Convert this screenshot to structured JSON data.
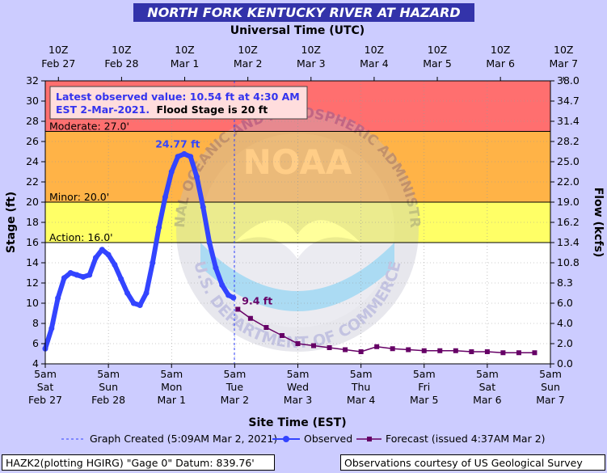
{
  "chart_title": "NORTH FORK KENTUCKY RIVER AT HAZARD",
  "top_axis_title": "Universal Time (UTC)",
  "bottom_axis_title": "Site Time (EST)",
  "left_axis_title": "Stage (ft)",
  "right_axis_title": "Flow (kcfs)",
  "info_box": {
    "latest_text": "Latest observed value: 10.54 ft at 4:30 AM",
    "date_text": "EST 2-Mar-2021.",
    "flood_stage_text": "Flood Stage is 20 ft"
  },
  "thresholds": [
    {
      "label": "Moderate: 27.0'",
      "value": 27.0
    },
    {
      "label": "Minor: 20.0'",
      "value": 20.0
    },
    {
      "label": "Action: 16.0'",
      "value": 16.0
    }
  ],
  "peak_label": "24.77 ft",
  "forecast_start_label": "9.4 ft",
  "legend": {
    "graph_created": "Graph Created (5:09AM Mar 2, 2021)",
    "observed": "Observed",
    "forecast": "Forecast (issued 4:37AM Mar 2)"
  },
  "footer": {
    "left": "HAZK2(plotting HGIRG) \"Gage 0\" Datum: 839.76'",
    "right": "Observations courtesy of US Geological Survey"
  },
  "watermark": {
    "logo_text": "NOAA",
    "ring_top": "NATIONAL OCEANIC AND ATMOSPHERIC ADMINISTRATION",
    "ring_bottom": "U.S. DEPARTMENT OF COMMERCE"
  },
  "colors": {
    "background": "#ccccff",
    "title_bar": "#3333aa",
    "band_major": "#ff6f6f",
    "band_moderate": "#ffb347",
    "band_minor": "#ffff66",
    "band_normal": "#ffffff",
    "observed": "#3344ff",
    "forecast": "#660066",
    "peak_label": "#3344ff",
    "forecast_label": "#660066",
    "info_text": "#3333ee"
  },
  "chart_data": {
    "type": "line",
    "x_unit": "day offset from 5am EST Sat Feb 27, 2021",
    "xlim": [
      0,
      8
    ],
    "ylim": [
      4,
      32
    ],
    "y_right_ticks": [
      "0.0",
      "2.0",
      "4.0",
      "6.0",
      "8.3",
      "10.8",
      "13.4",
      "16.2",
      "19.0",
      "22.0",
      "25.0",
      "28.2",
      "31.4",
      "34.7",
      "38.0"
    ],
    "y_left_ticks": [
      4,
      6,
      8,
      10,
      12,
      14,
      16,
      18,
      20,
      22,
      24,
      26,
      28,
      30,
      32
    ],
    "x_bottom_ticks": [
      {
        "top": "5am",
        "mid": "Sat",
        "bottom": "Feb 27"
      },
      {
        "top": "5am",
        "mid": "Sun",
        "bottom": "Feb 28"
      },
      {
        "top": "5am",
        "mid": "Mon",
        "bottom": "Mar 1"
      },
      {
        "top": "5am",
        "mid": "Tue",
        "bottom": "Mar 2"
      },
      {
        "top": "5am",
        "mid": "Wed",
        "bottom": "Mar 3"
      },
      {
        "top": "5am",
        "mid": "Thu",
        "bottom": "Mar 4"
      },
      {
        "top": "5am",
        "mid": "Fri",
        "bottom": "Mar 5"
      },
      {
        "top": "5am",
        "mid": "Sat",
        "bottom": "Mar 6"
      },
      {
        "top": "5am",
        "mid": "Sun",
        "bottom": "Mar 7"
      }
    ],
    "x_top_ticks": [
      {
        "top": "10Z",
        "bottom": "Feb 27"
      },
      {
        "top": "10Z",
        "bottom": "Feb 28"
      },
      {
        "top": "10Z",
        "bottom": "Mar 1"
      },
      {
        "top": "10Z",
        "bottom": "Mar 2"
      },
      {
        "top": "10Z",
        "bottom": "Mar 3"
      },
      {
        "top": "10Z",
        "bottom": "Mar 4"
      },
      {
        "top": "10Z",
        "bottom": "Mar 5"
      },
      {
        "top": "10Z",
        "bottom": "Mar 6"
      },
      {
        "top": "10Z",
        "bottom": "Mar 7"
      }
    ],
    "graph_created_x": 2.995,
    "series": [
      {
        "name": "Observed",
        "x": [
          0.0,
          0.1,
          0.2,
          0.3,
          0.4,
          0.5,
          0.6,
          0.7,
          0.8,
          0.9,
          1.0,
          1.1,
          1.2,
          1.3,
          1.4,
          1.5,
          1.6,
          1.7,
          1.8,
          1.9,
          2.0,
          2.1,
          2.2,
          2.3,
          2.4,
          2.5,
          2.6,
          2.7,
          2.8,
          2.9,
          2.98
        ],
        "values": [
          5.5,
          7.5,
          10.5,
          12.5,
          13.0,
          12.8,
          12.6,
          12.8,
          14.5,
          15.3,
          14.8,
          13.8,
          12.4,
          11.0,
          10.0,
          9.8,
          11.0,
          14.0,
          17.5,
          20.5,
          23.0,
          24.5,
          24.77,
          24.5,
          22.5,
          19.5,
          16.0,
          13.5,
          11.8,
          10.8,
          10.54
        ]
      },
      {
        "name": "Forecast",
        "x": [
          3.05,
          3.25,
          3.5,
          3.75,
          4.0,
          4.25,
          4.5,
          4.75,
          5.0,
          5.25,
          5.5,
          5.75,
          6.0,
          6.25,
          6.5,
          6.75,
          7.0,
          7.25,
          7.5,
          7.75
        ],
        "values": [
          9.4,
          8.5,
          7.6,
          6.8,
          6.0,
          5.8,
          5.6,
          5.4,
          5.2,
          5.7,
          5.5,
          5.4,
          5.3,
          5.3,
          5.3,
          5.2,
          5.2,
          5.1,
          5.1,
          5.1
        ]
      }
    ],
    "peak": {
      "x": 2.2,
      "value": 24.77
    }
  }
}
